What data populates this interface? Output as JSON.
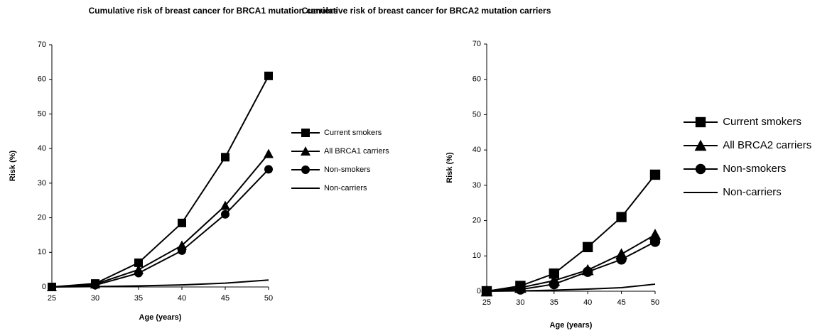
{
  "chart_data": [
    {
      "type": "line",
      "title": "Cumulative risk of breast cancer for BRCA1 mutation carriers",
      "x_label": "Age (years)",
      "y_label": "Risk (%)",
      "x": [
        25,
        30,
        35,
        40,
        45,
        50
      ],
      "xlim": [
        25,
        50
      ],
      "xticks": [
        25,
        30,
        35,
        40,
        45,
        50
      ],
      "ylim": [
        0,
        70
      ],
      "yticks": [
        0,
        10,
        20,
        30,
        40,
        50,
        60,
        70
      ],
      "series": [
        {
          "name": "Current smokers",
          "color": "#000000",
          "marker": "square",
          "values": [
            0,
            1,
            7,
            18.5,
            37.5,
            61
          ]
        },
        {
          "name": "All BRCA1 carriers",
          "color": "#000000",
          "marker": "triangle",
          "values": [
            0,
            0.8,
            5,
            12,
            23.5,
            38.5
          ]
        },
        {
          "name": "Non-smokers",
          "color": "#000000",
          "marker": "circle",
          "values": [
            0,
            0.5,
            4,
            10.5,
            21,
            34
          ]
        },
        {
          "name": "Non-carriers",
          "color": "#000000",
          "marker": "none",
          "values": [
            0,
            0.1,
            0.3,
            0.6,
            1.1,
            2
          ]
        }
      ],
      "legend": "right"
    },
    {
      "type": "line",
      "title": "Cumulative risk of breast cancer for BRCA2 mutation carriers",
      "x_label": "Age (years)",
      "y_label": "Risk (%)",
      "x": [
        25,
        30,
        35,
        40,
        45,
        50
      ],
      "xlim": [
        25,
        50
      ],
      "xticks": [
        25,
        30,
        35,
        40,
        45,
        50
      ],
      "ylim": [
        0,
        70
      ],
      "yticks": [
        0,
        10,
        20,
        30,
        40,
        50,
        60,
        70
      ],
      "series": [
        {
          "name": "Current smokers",
          "color": "#000000",
          "marker": "square",
          "values": [
            0,
            1.5,
            5,
            12.5,
            21,
            33
          ]
        },
        {
          "name": "All BRCA2 carriers",
          "color": "#000000",
          "marker": "triangle",
          "values": [
            0,
            1,
            3,
            6,
            10.5,
            16
          ]
        },
        {
          "name": "Non-smokers",
          "color": "#000000",
          "marker": "circle",
          "values": [
            0,
            0.5,
            2,
            5.5,
            9,
            14
          ]
        },
        {
          "name": "Non-carriers",
          "color": "#000000",
          "marker": "none",
          "values": [
            0,
            0.1,
            0.3,
            0.6,
            1,
            2
          ]
        }
      ],
      "legend": "right"
    }
  ]
}
